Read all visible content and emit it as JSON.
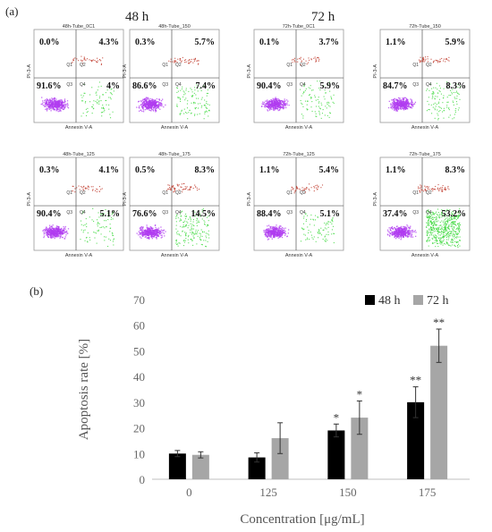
{
  "panel_a_label": "(a)",
  "panel_b_label": "(b)",
  "headers": [
    "48 h",
    "72 h"
  ],
  "facs": [
    {
      "title": "48h-Tube_0C1",
      "q1": "0.0%",
      "q2": "4.3%",
      "q3": "91.6%",
      "q4": "4%"
    },
    {
      "title": "48h-Tube_150",
      "q1": "0.3%",
      "q2": "5.7%",
      "q3": "86.6%",
      "q4": "7.4%"
    },
    {
      "title": "72h-Tube_0C1",
      "q1": "0.1%",
      "q2": "3.7%",
      "q3": "90.4%",
      "q4": "5.9%"
    },
    {
      "title": "72h-Tube_150",
      "q1": "1.1%",
      "q2": "5.9%",
      "q3": "84.7%",
      "q4": "8.3%"
    },
    {
      "title": "48h-Tube_125",
      "q1": "0.3%",
      "q2": "4.1%",
      "q3": "90.4%",
      "q4": "5.1%"
    },
    {
      "title": "48h-Tube_175",
      "q1": "0.5%",
      "q2": "8.3%",
      "q3": "76.6%",
      "q4": "14.5%"
    },
    {
      "title": "72h-Tube_125",
      "q1": "1.1%",
      "q2": "5.4%",
      "q3": "88.4%",
      "q4": "5.1%"
    },
    {
      "title": "72h-Tube_175",
      "q1": "1.1%",
      "q2": "8.3%",
      "q3": "37.4%",
      "q4": "53.2%"
    }
  ],
  "facs_axes": {
    "x": "Annexin V-A",
    "y": "PI-3-A",
    "gates": [
      "Q1",
      "Q2",
      "Q3",
      "Q4"
    ]
  },
  "colors": {
    "bar48": "#000000",
    "bar72": "#a6a6a6",
    "purple": "#b03cf0",
    "green": "#38d838",
    "red": "#c0392b"
  },
  "chart_data": {
    "type": "bar",
    "categories": [
      "0",
      "125",
      "150",
      "175"
    ],
    "series": [
      {
        "name": "48 h",
        "values": [
          10,
          8.5,
          19,
          30
        ],
        "errors": [
          1.2,
          1.8,
          2.5,
          6
        ],
        "sig": [
          "",
          "",
          "*",
          "**"
        ]
      },
      {
        "name": "72 h",
        "values": [
          9.5,
          16,
          24,
          52
        ],
        "errors": [
          1.2,
          6,
          6.5,
          6.5
        ],
        "sig": [
          "",
          "",
          "*",
          "**"
        ]
      }
    ],
    "xlabel": "Concentration [μg/mL]",
    "ylabel": "Apoptosis rate [%]",
    "ylim": [
      0,
      70
    ],
    "yticks": [
      "0",
      "10",
      "20",
      "30",
      "40",
      "50",
      "60",
      "70"
    ],
    "legend": "top-right"
  }
}
